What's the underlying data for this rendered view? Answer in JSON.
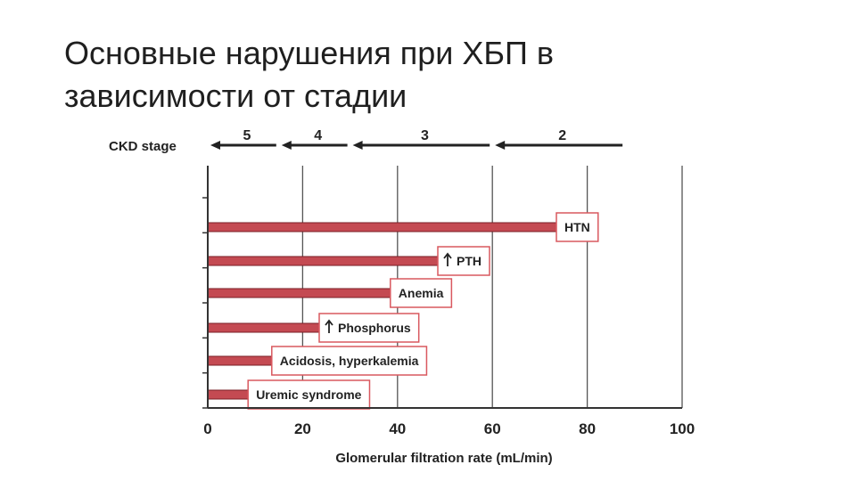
{
  "slide": {
    "title_line1": "Основные нарушения при ХБП в",
    "title_line2": "зависимости от стадии"
  },
  "chart_data": {
    "type": "bar",
    "orientation": "horizontal",
    "xlabel": "Glomerular filtration rate (mL/min)",
    "xlim": [
      0,
      100
    ],
    "xticks": [
      "0",
      "20",
      "40",
      "60",
      "80",
      "100"
    ],
    "gridlines_x": [
      20,
      40,
      60,
      80,
      100
    ],
    "ckd_stage_label": "CKD stage",
    "stages": [
      {
        "label": "5",
        "from": 15,
        "to": 0
      },
      {
        "label": "4",
        "from": 30,
        "to": 15
      },
      {
        "label": "3",
        "from": 60,
        "to": 30
      },
      {
        "label": "2",
        "from": 88,
        "to": 60
      }
    ],
    "bars": [
      {
        "label": "HTN",
        "value": 75,
        "arrow_up": false
      },
      {
        "label": "PTH",
        "value": 50,
        "arrow_up": true
      },
      {
        "label": "Anemia",
        "value": 40,
        "arrow_up": false
      },
      {
        "label": "Phosphorus",
        "value": 25,
        "arrow_up": true
      },
      {
        "label": "Acidosis, hyperkalemia",
        "value": 15,
        "arrow_up": false
      },
      {
        "label": "Uremic syndrome",
        "value": 10,
        "arrow_up": false
      }
    ],
    "colors": {
      "bar": "#c44a52",
      "bar_stroke": "#7a1f26",
      "label_box": "#d9585f",
      "axis": "#333333"
    }
  }
}
